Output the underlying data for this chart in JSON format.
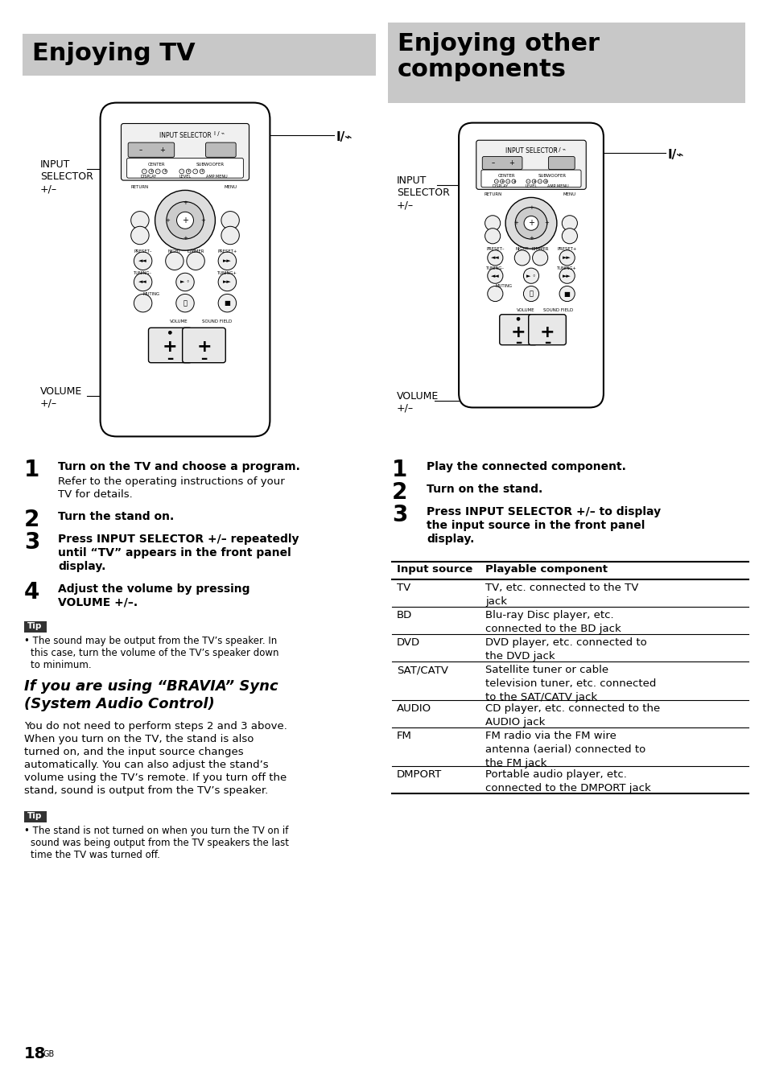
{
  "bg_color": "#ffffff",
  "header_bg": "#c8c8c8",
  "header_left_text": "Enjoying TV",
  "header_right_text": "Enjoying other\ncomponents",
  "tip_label_bg": "#333333",
  "tip_label_color": "#ffffff",
  "table_header_row": [
    "Input source",
    "Playable component"
  ],
  "table_rows": [
    [
      "TV",
      "TV, etc. connected to the TV\njack"
    ],
    [
      "BD",
      "Blu-ray Disc player, etc.\nconnected to the BD jack"
    ],
    [
      "DVD",
      "DVD player, etc. connected to\nthe DVD jack"
    ],
    [
      "SAT/CATV",
      "Satellite tuner or cable\ntelevision tuner, etc. connected\nto the SAT/CATV jack"
    ],
    [
      "AUDIO",
      "CD player, etc. connected to the\nAUDIO jack"
    ],
    [
      "FM",
      "FM radio via the FM wire\nantenna (aerial) connected to\nthe FM jack"
    ],
    [
      "DMPORT",
      "Portable audio player, etc.\nconnected to the DMPORT jack"
    ]
  ],
  "page_number": "18",
  "page_suffix": "GB"
}
